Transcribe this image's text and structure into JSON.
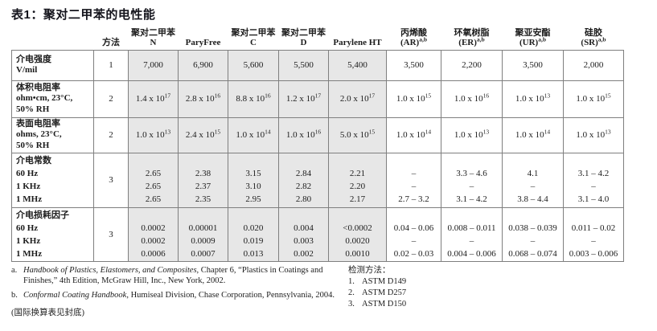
{
  "title": "表1：聚对二甲苯的电性能",
  "colors": {
    "shaded_cell": "#e7e7e7",
    "border": "#7f7f7f",
    "text": "#1c1c1c"
  },
  "table": {
    "columns": [
      {
        "label": "",
        "shaded": false
      },
      {
        "label": "方法",
        "shaded": false
      },
      {
        "label": "聚对二甲苯 N",
        "shaded": true
      },
      {
        "label": "ParyFree",
        "shaded": true
      },
      {
        "label": "聚对二甲苯 C",
        "shaded": true
      },
      {
        "label": "聚对二甲苯 D",
        "shaded": true
      },
      {
        "label": "Parylene HT",
        "shaded": true
      },
      {
        "label": "丙烯酸\n(AR)^a,b",
        "shaded": false
      },
      {
        "label": "环氧树脂\n(ER)^a,b",
        "shaded": false
      },
      {
        "label": "聚亚安酯\n(UR)^a,b",
        "shaded": false
      },
      {
        "label": "硅胶\n(SR)^a,b",
        "shaded": false
      }
    ],
    "rows": [
      {
        "property": [
          "介电强度",
          "V/mil"
        ],
        "method": "1",
        "values": [
          "7,000",
          "6,900",
          "5,600",
          "5,500",
          "5,400",
          "3,500",
          "2,200",
          "3,500",
          "2,000"
        ]
      },
      {
        "property": [
          "体积电阻率",
          "ohm•cm, 23°C,",
          "50% RH"
        ],
        "method": "2",
        "values": [
          "1.4 x 10^17",
          "2.8 x 10^16",
          "8.8 x 10^16",
          "1.2 x 10^17",
          "2.0 x 10^17",
          "1.0 x 10^15",
          "1.0 x 10^16",
          "1.0 x 10^13",
          "1.0 x 10^15"
        ]
      },
      {
        "property": [
          "表面电阻率",
          "ohms, 23°C,",
          "50% RH"
        ],
        "method": "2",
        "values": [
          "1.0 x 10^13",
          "2.4 x 10^15",
          "1.0 x 10^14",
          "1.0 x 10^16",
          "5.0 x 10^15",
          "1.0 x 10^14",
          "1.0 x 10^13",
          "1.0 x 10^14",
          "1.0 x 10^13"
        ]
      },
      {
        "property": [
          "介电常数",
          "60 Hz",
          "1 KHz",
          "1 MHz"
        ],
        "method": "3",
        "values": [
          [
            "2.65",
            "2.65",
            "2.65"
          ],
          [
            "2.38",
            "2.37",
            "2.35"
          ],
          [
            "3.15",
            "3.10",
            "2.95"
          ],
          [
            "2.84",
            "2.82",
            "2.80"
          ],
          [
            "2.21",
            "2.20",
            "2.17"
          ],
          [
            "–",
            "–",
            "2.7 – 3.2"
          ],
          [
            "3.3 – 4.6",
            "–",
            "3.1 – 4.2"
          ],
          [
            "4.1",
            "–",
            "3.8 – 4.4"
          ],
          [
            "3.1 – 4.2",
            "–",
            "3.1 – 4.0"
          ]
        ]
      },
      {
        "property": [
          "介电损耗因子",
          "60 Hz",
          "1 KHz",
          "1 MHz"
        ],
        "method": "3",
        "values": [
          [
            "0.0002",
            "0.0002",
            "0.0006"
          ],
          [
            "0.00001",
            "0.0009",
            "0.0007"
          ],
          [
            "0.020",
            "0.019",
            "0.013"
          ],
          [
            "0.004",
            "0.003",
            "0.002"
          ],
          [
            "<0.0002",
            "0.0020",
            "0.0010"
          ],
          [
            "0.04 – 0.06",
            "–",
            "0.02 – 0.03"
          ],
          [
            "0.008 – 0.011",
            "–",
            "0.004 – 0.006"
          ],
          [
            "0.038 – 0.039",
            "–",
            "0.068 – 0.074"
          ],
          [
            "0.011 – 0.02",
            "–",
            "0.003 – 0.006"
          ]
        ]
      }
    ]
  },
  "footnotes": {
    "items": [
      {
        "marker": "a.",
        "parts": [
          {
            "t": "Handbook of Plastics, Elastomers, and Composites",
            "i": true
          },
          {
            "t": ", Chapter 6, “Plastics in Coatings and Finishes,” 4th Edition, McGraw Hill, Inc., New York, 2002.",
            "i": false
          }
        ]
      },
      {
        "marker": "b.",
        "parts": [
          {
            "t": "Conformal Coating Handbook",
            "i": true
          },
          {
            "t": ", Humiseal Division, Chase Corporation, Pennsylvania, 2004.",
            "i": false
          }
        ]
      }
    ],
    "bottom_note": "(国际换算表见封底)"
  },
  "test_methods": {
    "heading": "检测方法：",
    "items": [
      {
        "num": "1.",
        "label": "ASTM D149"
      },
      {
        "num": "2.",
        "label": "ASTM D257"
      },
      {
        "num": "3.",
        "label": "ASTM D150"
      }
    ]
  }
}
